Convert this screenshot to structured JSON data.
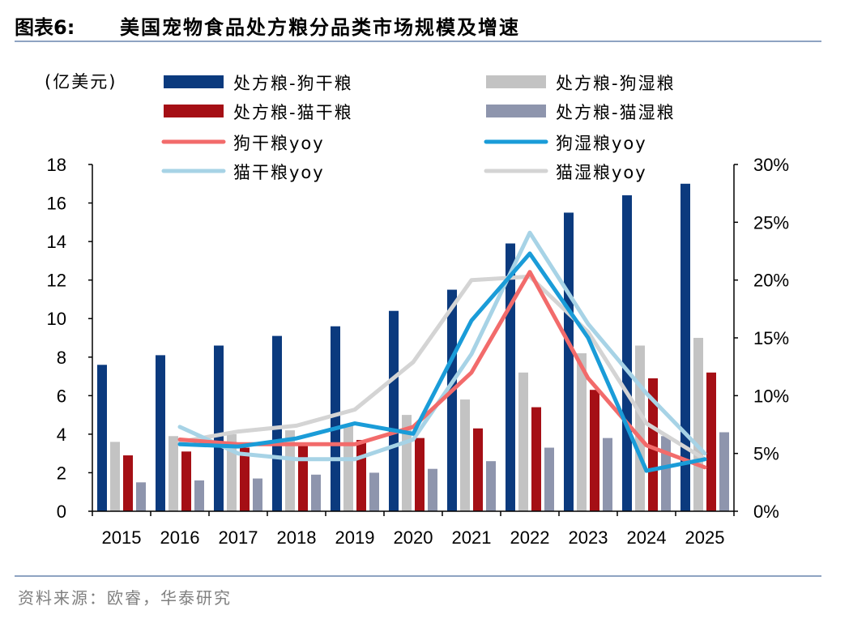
{
  "header": {
    "figure_label": "图表6:",
    "title": "美国宠物食品处方粮分品类市场规模及增速"
  },
  "source": "资料来源：欧睿，华泰研究",
  "chart_data": {
    "type": "bar+line",
    "unit_label": "(亿美元)",
    "categories": [
      "2015",
      "2016",
      "2017",
      "2018",
      "2019",
      "2020",
      "2021",
      "2022",
      "2023",
      "2024",
      "2025"
    ],
    "left_axis": {
      "ylim": [
        0,
        18
      ],
      "ticks": [
        "0",
        "2",
        "4",
        "6",
        "8",
        "10",
        "12",
        "14",
        "16",
        "18"
      ]
    },
    "right_axis": {
      "ylim": [
        0,
        30
      ],
      "ticks": [
        "0%",
        "5%",
        "10%",
        "15%",
        "20%",
        "25%",
        "30%"
      ]
    },
    "bar_series": [
      {
        "name": "处方粮-狗干粮",
        "color": "#0b3a7e",
        "values": [
          7.6,
          8.1,
          8.6,
          9.1,
          9.6,
          10.4,
          11.5,
          13.9,
          15.5,
          16.4,
          17.0
        ]
      },
      {
        "name": "处方粮-狗湿粮",
        "color": "#c3c3c3",
        "values": [
          3.6,
          3.9,
          4.0,
          4.2,
          4.5,
          5.0,
          5.8,
          7.2,
          8.2,
          8.6,
          9.0
        ]
      },
      {
        "name": "处方粮-猫干粮",
        "color": "#a50f15",
        "values": [
          2.9,
          3.1,
          3.3,
          3.5,
          3.7,
          3.8,
          4.3,
          5.4,
          6.3,
          6.9,
          7.2
        ]
      },
      {
        "name": "处方粮-猫湿粮",
        "color": "#8e95ad",
        "values": [
          1.5,
          1.6,
          1.7,
          1.9,
          2.0,
          2.2,
          2.6,
          3.3,
          3.8,
          3.9,
          4.1
        ]
      }
    ],
    "line_series": [
      {
        "name": "狗干粮yoy",
        "color": "#f26b6b",
        "values": [
          null,
          6.2,
          5.8,
          5.8,
          5.8,
          7.3,
          12.0,
          20.7,
          11.5,
          5.7,
          3.8
        ]
      },
      {
        "name": "狗湿粮yoy",
        "color": "#1a9cd8",
        "values": [
          null,
          5.8,
          5.6,
          6.3,
          7.6,
          6.7,
          16.5,
          22.3,
          15.0,
          3.5,
          4.5
        ]
      },
      {
        "name": "猫干粮yoy",
        "color": "#a7d3e6",
        "values": [
          null,
          7.3,
          5.0,
          4.5,
          4.5,
          6.2,
          13.6,
          24.1,
          16.2,
          10.2,
          5.0
        ]
      },
      {
        "name": "猫湿粮yoy",
        "color": "#d4d4d4",
        "values": [
          null,
          6.0,
          6.9,
          7.4,
          8.8,
          12.9,
          20.0,
          20.3,
          15.5,
          7.6,
          4.5
        ]
      }
    ],
    "legend": {
      "rows": [
        [
          "处方粮-狗干粮",
          "处方粮-狗湿粮"
        ],
        [
          "处方粮-猫干粮",
          "处方粮-猫湿粮"
        ],
        [
          "狗干粮yoy",
          "狗湿粮yoy"
        ],
        [
          "猫干粮yoy",
          "猫湿粮yoy"
        ]
      ]
    },
    "grid": false
  }
}
